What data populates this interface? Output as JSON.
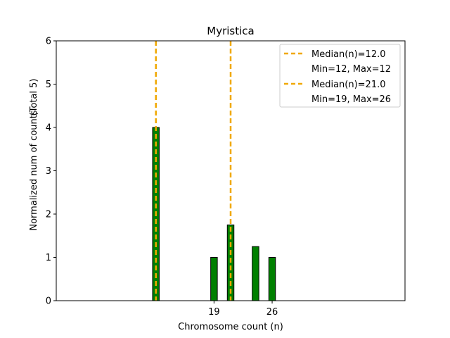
{
  "chart_data": {
    "type": "bar",
    "title": "Myristica",
    "xlabel": "Chromosome count (n)",
    "ylabel": "Normalized num of counts",
    "ylabel_note": "(Total 5)",
    "xlim": [
      0,
      42
    ],
    "ylim": [
      0,
      6
    ],
    "yticks": [
      0,
      1,
      2,
      3,
      4,
      5,
      6
    ],
    "xticks": [
      19,
      26
    ],
    "bars": [
      {
        "x": 12,
        "value": 4
      },
      {
        "x": 19,
        "value": 1
      },
      {
        "x": 21,
        "value": 1.75
      },
      {
        "x": 24,
        "value": 1.25
      },
      {
        "x": 26,
        "value": 1
      }
    ],
    "bar_color": "#008000",
    "bar_edge_color": "#000000",
    "median_lines": [
      {
        "x": 12,
        "label": "Median(n)=12.0",
        "range_label": "Min=12, Max=12"
      },
      {
        "x": 21,
        "label": "Median(n)=21.0",
        "range_label": "Min=19, Max=26"
      }
    ],
    "median_color": "#f0a800",
    "legend_position": "top-right",
    "grid": false
  }
}
